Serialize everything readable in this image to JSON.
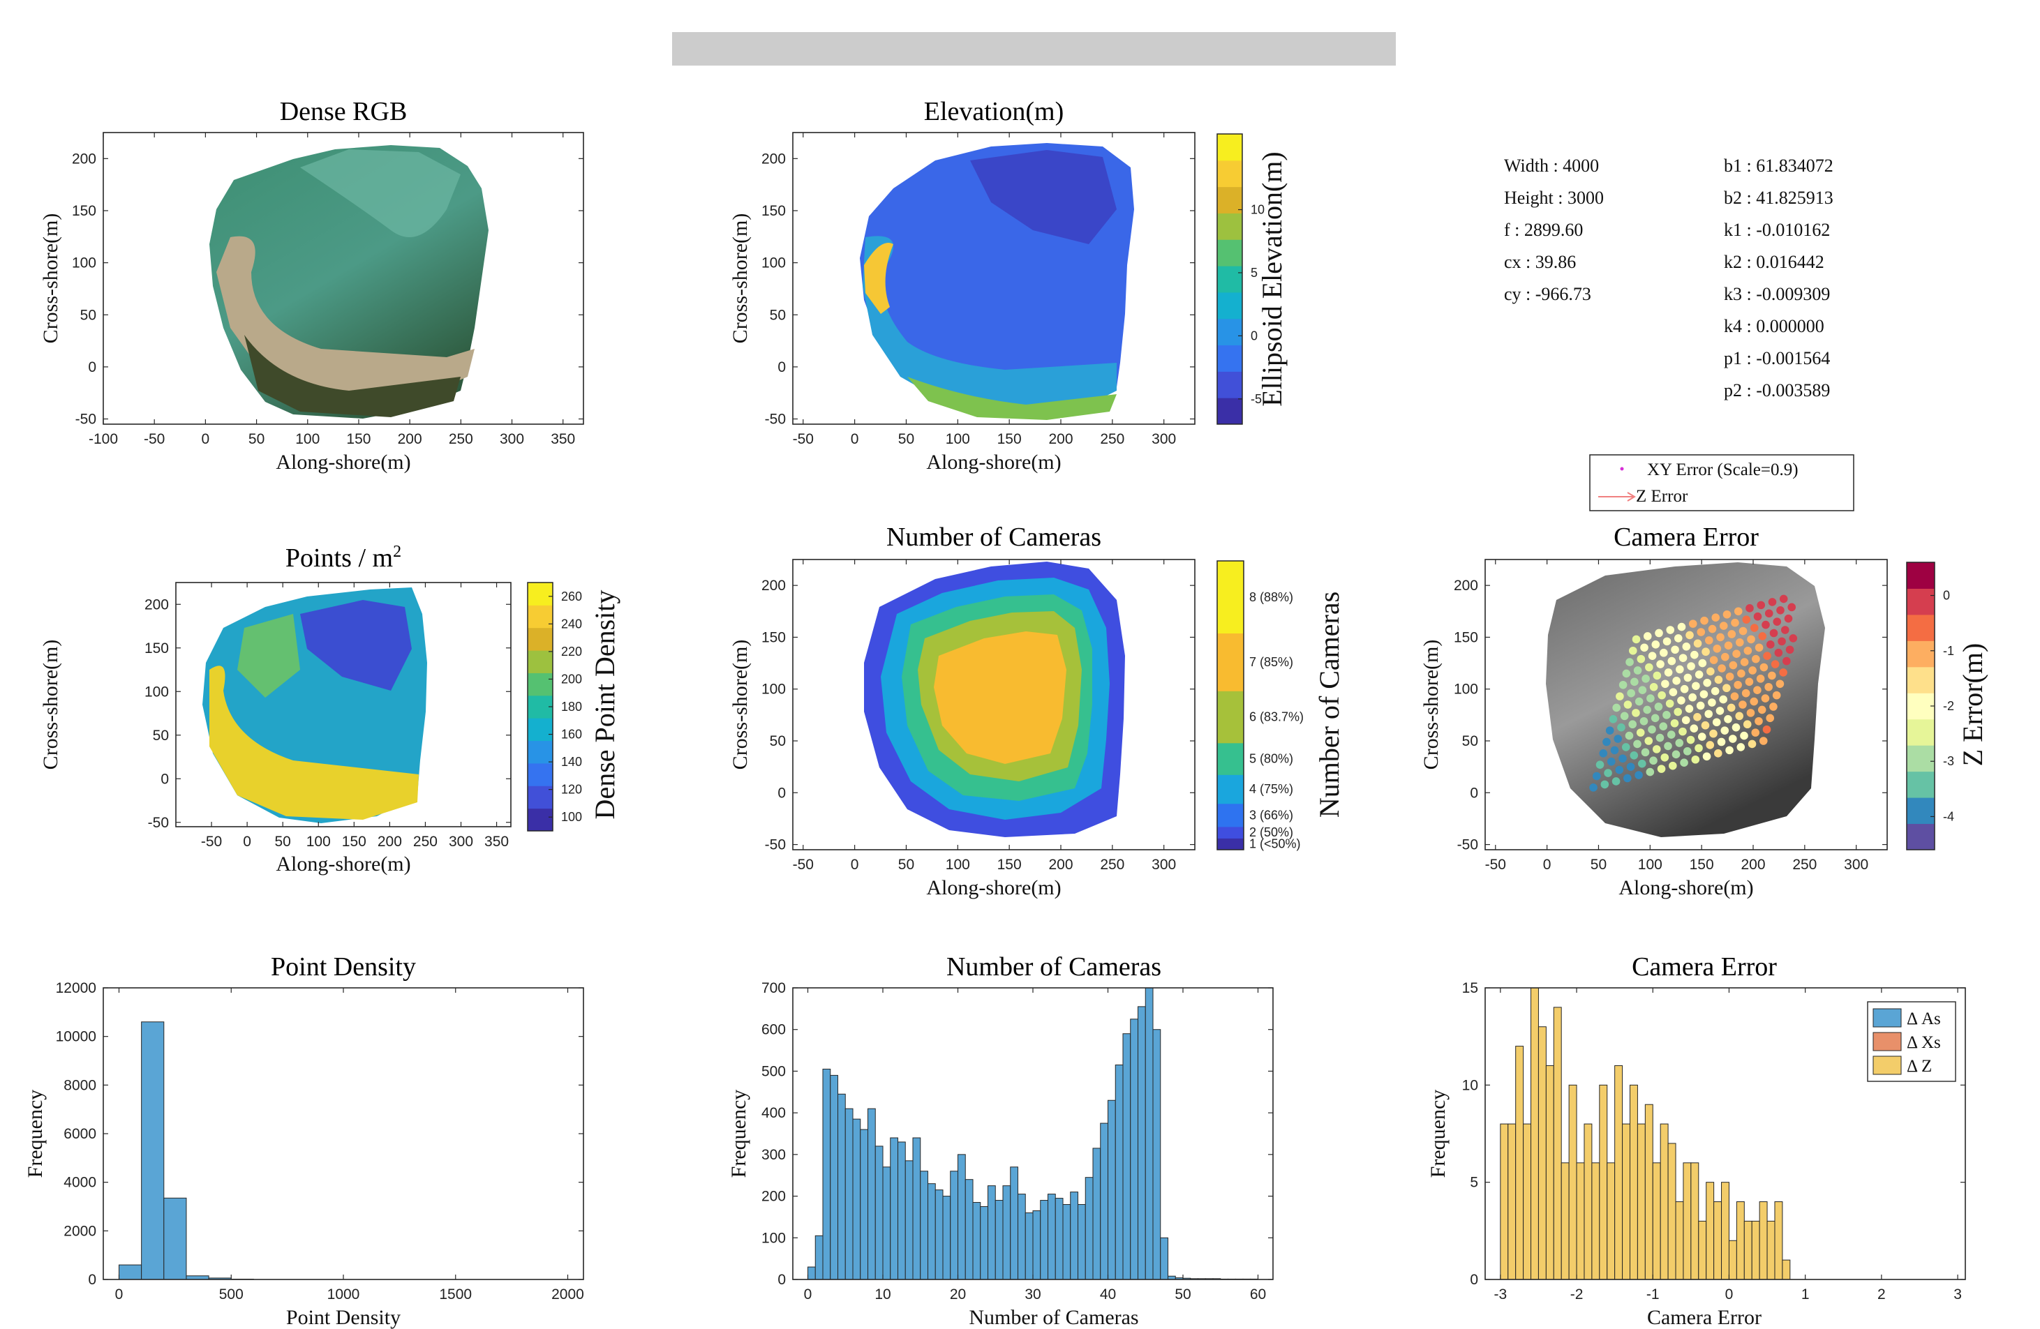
{
  "banner": {
    "color": "#cccccc"
  },
  "camera_params": {
    "left": [
      {
        "key": "Width",
        "value": "4000"
      },
      {
        "key": "Height",
        "value": "3000"
      },
      {
        "key": "f",
        "value": "2899.60"
      },
      {
        "key": "cx",
        "value": "39.86"
      },
      {
        "key": "cy",
        "value": "-966.73"
      }
    ],
    "right": [
      {
        "key": "b1",
        "value": "61.834072"
      },
      {
        "key": "b2",
        "value": "41.825913"
      },
      {
        "key": "k1",
        "value": "-0.010162"
      },
      {
        "key": "k2",
        "value": "0.016442"
      },
      {
        "key": "k3",
        "value": "-0.009309"
      },
      {
        "key": "k4",
        "value": "0.000000"
      },
      {
        "key": "p1",
        "value": "-0.001564"
      },
      {
        "key": "p2",
        "value": "-0.003589"
      }
    ]
  },
  "legend_camera": {
    "items": [
      {
        "label": "XY Error (Scale=0.9)",
        "color": "#d62fd6",
        "marker": "dot"
      },
      {
        "label": "Z Error",
        "color": "#f08080",
        "marker": "arrow"
      }
    ]
  },
  "chart_data": [
    {
      "id": "dense_rgb",
      "type": "image-map",
      "title": "Dense RGB",
      "xlabel": "Along-shore(m)",
      "ylabel": "Cross-shore(m)",
      "xlim": [
        -100,
        370
      ],
      "ylim": [
        -55,
        225
      ],
      "xticks": [
        -100,
        -50,
        0,
        50,
        100,
        150,
        200,
        250,
        300,
        350
      ],
      "yticks": [
        -50,
        0,
        50,
        100,
        150,
        200
      ],
      "image": "aerial RGB orthomosaic"
    },
    {
      "id": "elevation",
      "type": "heatmap",
      "title": "Elevation(m)",
      "xlabel": "Along-shore(m)",
      "ylabel": "Cross-shore(m)",
      "xlim": [
        -60,
        330
      ],
      "ylim": [
        -55,
        225
      ],
      "xticks": [
        -50,
        0,
        50,
        100,
        150,
        200,
        250,
        300
      ],
      "yticks": [
        -50,
        0,
        50,
        100,
        150,
        200
      ],
      "colorbar": {
        "title": "Ellipsoid Elevation(m)",
        "range": [
          -7,
          16
        ],
        "ticks": [
          -5,
          0,
          5,
          10
        ],
        "colors": [
          "#3a2fa7",
          "#4150d8",
          "#3573f0",
          "#2893e6",
          "#14b0cf",
          "#20bba5",
          "#55c171",
          "#9dc13f",
          "#dbb128",
          "#f7cc33",
          "#f7ee1f"
        ]
      }
    },
    {
      "id": "points_m2",
      "type": "heatmap",
      "title": "Points / m",
      "title_sup": "2",
      "xlabel": "Along-shore(m)",
      "ylabel": "Cross-shore(m)",
      "xlim": [
        -100,
        370
      ],
      "ylim": [
        -55,
        225
      ],
      "xticks": [
        -50,
        0,
        50,
        100,
        150,
        200,
        250,
        300,
        350
      ],
      "yticks": [
        -50,
        0,
        50,
        100,
        150,
        200
      ],
      "colorbar": {
        "title": "Dense Point Density",
        "range": [
          90,
          270
        ],
        "ticks": [
          100,
          120,
          140,
          160,
          180,
          200,
          220,
          240,
          260
        ],
        "colors": [
          "#3a2fa7",
          "#4150d8",
          "#3573f0",
          "#2893e6",
          "#14b0cf",
          "#20bba5",
          "#55c171",
          "#9dc13f",
          "#dbb128",
          "#f7cc33",
          "#f7ee1f"
        ]
      }
    },
    {
      "id": "num_cameras_map",
      "type": "heatmap",
      "title": "Number of Cameras",
      "xlabel": "Along-shore(m)",
      "ylabel": "Cross-shore(m)",
      "xlim": [
        -60,
        330
      ],
      "ylim": [
        -55,
        225
      ],
      "xticks": [
        -50,
        0,
        50,
        100,
        150,
        200,
        250,
        300
      ],
      "yticks": [
        -50,
        0,
        50,
        100,
        150,
        200
      ],
      "colorbar": {
        "title": "Number of Cameras",
        "levels": [
          {
            "label": "1 (<50%)",
            "color": "#3a2fa7",
            "h": 0.04
          },
          {
            "label": "2 (50%)",
            "color": "#3f4ee0",
            "h": 0.04
          },
          {
            "label": "3 (66%)",
            "color": "#2e73f0",
            "h": 0.08
          },
          {
            "label": "4 (75%)",
            "color": "#1aa6dd",
            "h": 0.1
          },
          {
            "label": "5 (80%)",
            "color": "#36c08f",
            "h": 0.11
          },
          {
            "label": "6 (83.7%)",
            "color": "#a6c13a",
            "h": 0.18
          },
          {
            "label": "7 (85%)",
            "color": "#f8bb30",
            "h": 0.2
          },
          {
            "label": "8 (88%)",
            "color": "#f7ee1f",
            "h": 0.25
          }
        ]
      }
    },
    {
      "id": "camera_error_map",
      "type": "scatter",
      "title": "Camera Error",
      "xlabel": "Along-shore(m)",
      "ylabel": "Cross-shore(m)",
      "xlim": [
        -60,
        330
      ],
      "ylim": [
        -55,
        225
      ],
      "xticks": [
        -50,
        0,
        50,
        100,
        150,
        200,
        250,
        300
      ],
      "yticks": [
        -50,
        0,
        50,
        100,
        150,
        200
      ],
      "colorbar": {
        "title": "Z Error(m)",
        "range": [
          -4.6,
          0.6
        ],
        "ticks": [
          -4,
          -3,
          -2,
          -1,
          0
        ],
        "colors": [
          "#5e4fa2",
          "#3288bd",
          "#66c2a5",
          "#abdda4",
          "#e6f598",
          "#ffffbf",
          "#fee08b",
          "#fdae61",
          "#f46d43",
          "#d53e4f",
          "#9e0142"
        ]
      }
    },
    {
      "id": "point_density_hist",
      "type": "bar",
      "title": "Point Density",
      "xlabel": "Point Density",
      "ylabel": "Frequency",
      "xlim": [
        -70,
        2070
      ],
      "ylim": [
        0,
        12000
      ],
      "xticks": [
        0,
        500,
        1000,
        1500,
        2000
      ],
      "yticks": [
        0,
        2000,
        4000,
        6000,
        8000,
        10000,
        12000
      ],
      "bin_width": 100,
      "bins": [
        0,
        100,
        200,
        300,
        400,
        500
      ],
      "values": [
        600,
        10600,
        3350,
        150,
        60,
        15
      ],
      "color": "#5aa5d5"
    },
    {
      "id": "num_cameras_hist",
      "type": "bar",
      "title": "Number of Cameras",
      "xlabel": "Number of Cameras",
      "ylabel": "Frequency",
      "xlim": [
        -2,
        62
      ],
      "ylim": [
        0,
        700
      ],
      "xticks": [
        0,
        10,
        20,
        30,
        40,
        50,
        60
      ],
      "yticks": [
        0,
        100,
        200,
        300,
        400,
        500,
        600,
        700
      ],
      "bin_width": 1,
      "bins": [
        0,
        1,
        2,
        3,
        4,
        5,
        6,
        7,
        8,
        9,
        10,
        11,
        12,
        13,
        14,
        15,
        16,
        17,
        18,
        19,
        20,
        21,
        22,
        23,
        24,
        25,
        26,
        27,
        28,
        29,
        30,
        31,
        32,
        33,
        34,
        35,
        36,
        37,
        38,
        39,
        40,
        41,
        42,
        43,
        44,
        45,
        46,
        47,
        48,
        49,
        50,
        51,
        52,
        53,
        54,
        55,
        56,
        57,
        58,
        59
      ],
      "values": [
        30,
        105,
        505,
        490,
        445,
        410,
        385,
        360,
        410,
        320,
        270,
        340,
        330,
        285,
        340,
        260,
        230,
        215,
        200,
        260,
        300,
        240,
        185,
        175,
        225,
        190,
        225,
        270,
        205,
        160,
        165,
        190,
        205,
        195,
        180,
        210,
        180,
        245,
        315,
        375,
        430,
        515,
        590,
        625,
        655,
        700,
        600,
        100,
        8,
        4,
        3,
        2,
        2,
        2,
        2,
        1,
        1,
        1,
        1,
        1
      ],
      "color": "#5aa5d5"
    },
    {
      "id": "camera_error_hist",
      "type": "bar",
      "title": "Camera Error",
      "xlabel": "Camera Error",
      "ylabel": "Frequency",
      "xlim": [
        -3.2,
        3.1
      ],
      "ylim": [
        0,
        15
      ],
      "xticks": [
        -3,
        -2,
        -1,
        0,
        1,
        2,
        3
      ],
      "yticks": [
        0,
        5,
        10,
        15
      ],
      "bin_width": 0.1,
      "bins_start": -3.0,
      "values": [
        8,
        8,
        12,
        8,
        15,
        13,
        11,
        14,
        6,
        10,
        6,
        8,
        6,
        10,
        6,
        11,
        8,
        10,
        8,
        9,
        6,
        8,
        7,
        4,
        6,
        6,
        3,
        5,
        4,
        5,
        2,
        4,
        3,
        3,
        4,
        3,
        4,
        1,
        0,
        0,
        0,
        0,
        0,
        0,
        0,
        0,
        0,
        0,
        0,
        0,
        0,
        0,
        0,
        0,
        0,
        0,
        0,
        0,
        0,
        0
      ],
      "legend": [
        {
          "label": "Δ As",
          "color": "#5aa5d5"
        },
        {
          "label": "Δ Xs",
          "color": "#e8906a"
        },
        {
          "label": "Δ Z",
          "color": "#f3cd6a"
        }
      ],
      "color": "#f3cd6a"
    }
  ]
}
